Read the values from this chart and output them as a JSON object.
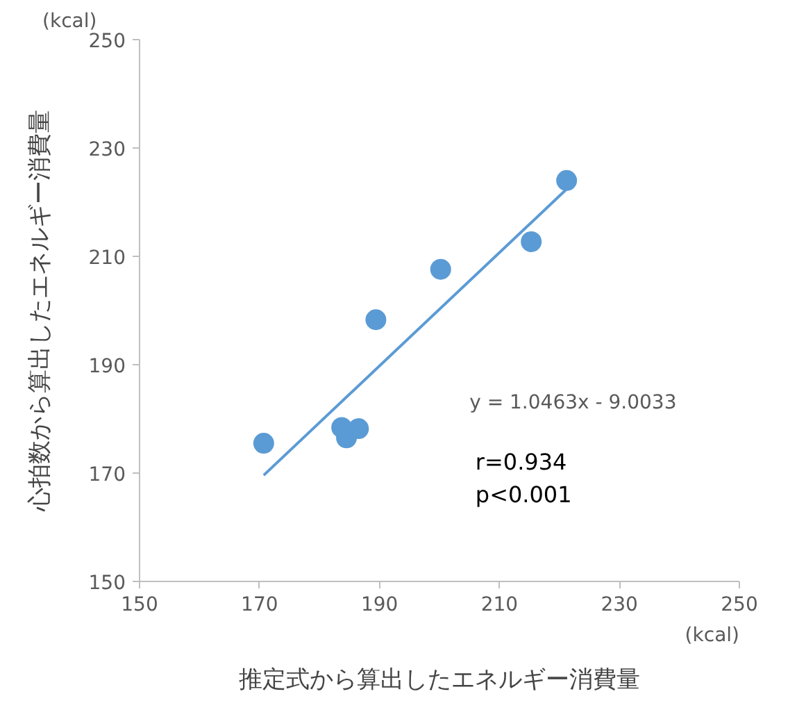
{
  "chart_data": {
    "type": "scatter",
    "xlabel": "推定式から算出したエネルギー消費量",
    "ylabel": "心拍数から算出したエネルギー消費量",
    "xlim": [
      150,
      250
    ],
    "xticks": [
      150,
      170,
      190,
      210,
      230,
      250
    ],
    "ylim": [
      150,
      250
    ],
    "yticks": [
      150,
      170,
      190,
      210,
      230,
      250
    ],
    "grid": false,
    "series": [
      {
        "color": "#5b9bd5",
        "marker": "circle",
        "x": [
          170.7,
          183.7,
          184.5,
          186.5,
          189.4,
          200.2,
          215.3,
          221.2
        ],
        "values": [
          175.5,
          178.4,
          176.5,
          178.2,
          198.3,
          207.6,
          212.7,
          224.0
        ]
      },
      {
        "type": "line",
        "marker": "none",
        "color": "#5b9bd5",
        "x": [
          170.7,
          221.2
        ],
        "values": [
          169.6,
          222.4
        ]
      }
    ],
    "annotations": [
      "(kcal)",
      "(kcal)",
      "y = 1.0463x - 9.0033",
      "r=0.934",
      "p<0.001"
    ]
  }
}
